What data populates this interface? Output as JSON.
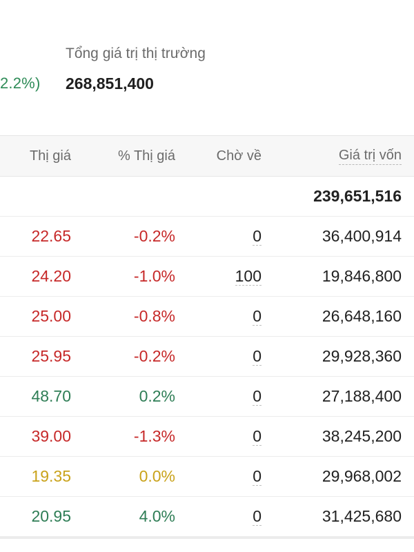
{
  "summary": {
    "change_partial": "2.2%)",
    "market_value_label": "Tổng giá trị thị trường",
    "market_value": "268,851,400"
  },
  "table": {
    "headers": {
      "price": "Thị giá",
      "pct": "% Thị giá",
      "pending": "Chờ về",
      "capital": "Giá trị vốn"
    },
    "total_capital": "239,651,516",
    "rows": [
      {
        "price": "22.65",
        "pct": "-0.2%",
        "pending": "0",
        "capital": "36,400,914",
        "color": "#c62828"
      },
      {
        "price": "24.20",
        "pct": "-1.0%",
        "pending": "100",
        "capital": "19,846,800",
        "color": "#c62828"
      },
      {
        "price": "25.00",
        "pct": "-0.8%",
        "pending": "0",
        "capital": "26,648,160",
        "color": "#c62828"
      },
      {
        "price": "25.95",
        "pct": "-0.2%",
        "pending": "0",
        "capital": "29,928,360",
        "color": "#c62828"
      },
      {
        "price": "48.70",
        "pct": "0.2%",
        "pending": "0",
        "capital": "27,188,400",
        "color": "#2e7d55"
      },
      {
        "price": "39.00",
        "pct": "-1.3%",
        "pending": "0",
        "capital": "38,245,200",
        "color": "#c62828"
      },
      {
        "price": "19.35",
        "pct": "0.0%",
        "pending": "0",
        "capital": "29,968,002",
        "color": "#c9a21a"
      },
      {
        "price": "20.95",
        "pct": "4.0%",
        "pending": "0",
        "capital": "31,425,680",
        "color": "#2e7d55"
      }
    ]
  }
}
